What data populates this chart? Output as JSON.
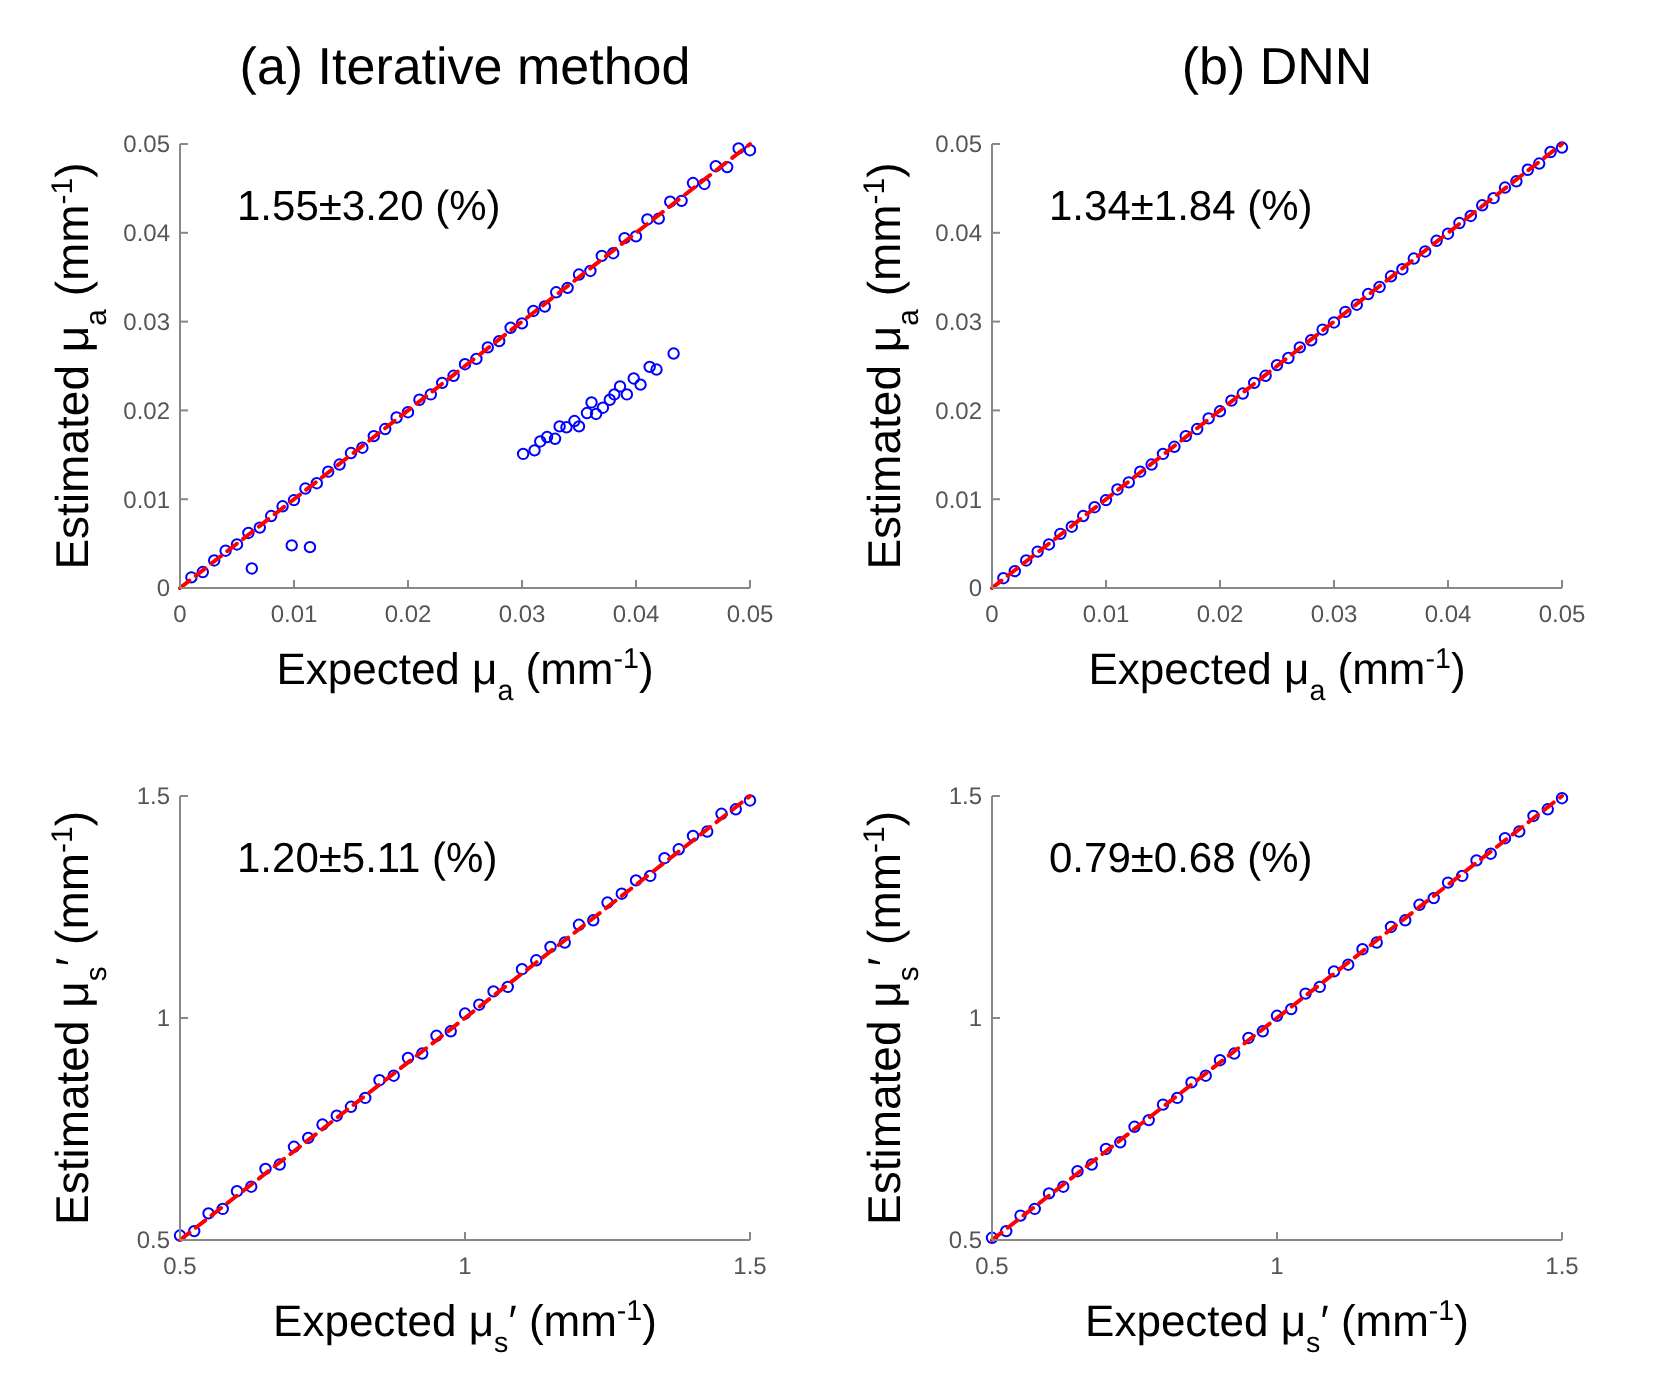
{
  "chart_data": [
    {
      "type": "scatter",
      "title": "(a) Iterative method",
      "xlabel": "Expected μ$_{a}$ (mm$^{-1}$)",
      "ylabel": "Estimated μ$_{a}$ (mm$^{-1}$)",
      "annotations": [
        "1.55±3.20 (%)"
      ],
      "xlim": [
        0,
        0.05
      ],
      "ylim": [
        0,
        0.05
      ],
      "xticks": [
        0,
        0.01,
        0.02,
        0.03,
        0.04,
        0.05
      ],
      "yticks": [
        0,
        0.01,
        0.02,
        0.03,
        0.04,
        0.05
      ],
      "series": [
        {
          "type": "scatter",
          "color": "#0000ff",
          "marker": "circle",
          "x": [
            0.001,
            0.002,
            0.003,
            0.004,
            0.005,
            0.006,
            0.007,
            0.008,
            0.009,
            0.01,
            0.011,
            0.012,
            0.013,
            0.014,
            0.015,
            0.016,
            0.017,
            0.018,
            0.019,
            0.02,
            0.021,
            0.022,
            0.023,
            0.024,
            0.025,
            0.026,
            0.027,
            0.028,
            0.029,
            0.03,
            0.031,
            0.032,
            0.033,
            0.034,
            0.035,
            0.036,
            0.037,
            0.038,
            0.039,
            0.04,
            0.041,
            0.042,
            0.043,
            0.044,
            0.045,
            0.046,
            0.047,
            0.048,
            0.049,
            0.05,
            0.0063,
            0.0098,
            0.0114,
            0.0301,
            0.0311,
            0.0316,
            0.0322,
            0.0329,
            0.0333,
            0.0339,
            0.0346,
            0.035,
            0.0357,
            0.0361,
            0.0365,
            0.0371,
            0.0377,
            0.0381,
            0.0386,
            0.0392,
            0.0398,
            0.0404,
            0.0412,
            0.0418,
            0.0433
          ],
          "values": [
            0.0012,
            0.0018,
            0.0031,
            0.0042,
            0.0049,
            0.0062,
            0.0068,
            0.0081,
            0.0092,
            0.0099,
            0.0112,
            0.0118,
            0.0131,
            0.0139,
            0.0152,
            0.0158,
            0.0171,
            0.0179,
            0.0192,
            0.0198,
            0.0212,
            0.0218,
            0.0231,
            0.0239,
            0.0252,
            0.0258,
            0.0271,
            0.0278,
            0.0293,
            0.0298,
            0.0312,
            0.0317,
            0.0333,
            0.0338,
            0.0353,
            0.0357,
            0.0374,
            0.0377,
            0.0394,
            0.0396,
            0.0415,
            0.0416,
            0.0435,
            0.0436,
            0.0456,
            0.0455,
            0.0475,
            0.0474,
            0.0495,
            0.0493,
            0.0022,
            0.0048,
            0.0046,
            0.0151,
            0.0155,
            0.0165,
            0.017,
            0.0168,
            0.0182,
            0.0181,
            0.0188,
            0.0182,
            0.0197,
            0.0209,
            0.0196,
            0.0203,
            0.0212,
            0.0218,
            0.0227,
            0.0218,
            0.0236,
            0.0229,
            0.0249,
            0.0246,
            0.0264
          ]
        },
        {
          "type": "line",
          "color": "#ff0000",
          "marker": "none",
          "line_style": "dashed",
          "x": [
            0,
            0.05
          ],
          "values": [
            0,
            0.05
          ]
        }
      ]
    },
    {
      "type": "scatter",
      "title": "(b) DNN",
      "xlabel": "Expected μ$_{a}$ (mm$^{-1}$)",
      "ylabel": "Estimated μ$_{a}$ (mm$^{-1}$)",
      "annotations": [
        "1.34±1.84 (%)"
      ],
      "xlim": [
        0,
        0.05
      ],
      "ylim": [
        0,
        0.05
      ],
      "xticks": [
        0,
        0.01,
        0.02,
        0.03,
        0.04,
        0.05
      ],
      "yticks": [
        0,
        0.01,
        0.02,
        0.03,
        0.04,
        0.05
      ],
      "series": [
        {
          "type": "scatter",
          "color": "#0000ff",
          "marker": "circle",
          "x": [
            0.001,
            0.002,
            0.003,
            0.004,
            0.005,
            0.006,
            0.007,
            0.008,
            0.009,
            0.01,
            0.011,
            0.012,
            0.013,
            0.014,
            0.015,
            0.016,
            0.017,
            0.018,
            0.019,
            0.02,
            0.021,
            0.022,
            0.023,
            0.024,
            0.025,
            0.026,
            0.027,
            0.028,
            0.029,
            0.03,
            0.031,
            0.032,
            0.033,
            0.034,
            0.035,
            0.036,
            0.037,
            0.038,
            0.039,
            0.04,
            0.041,
            0.042,
            0.043,
            0.044,
            0.045,
            0.046,
            0.047,
            0.048,
            0.049,
            0.05
          ],
          "values": [
            0.0011,
            0.0019,
            0.0031,
            0.0041,
            0.0049,
            0.0061,
            0.0069,
            0.0081,
            0.0091,
            0.0099,
            0.0111,
            0.0119,
            0.0131,
            0.0139,
            0.0151,
            0.0159,
            0.0171,
            0.0179,
            0.0191,
            0.0199,
            0.0211,
            0.0219,
            0.0231,
            0.0239,
            0.0251,
            0.0259,
            0.0271,
            0.0279,
            0.0291,
            0.0299,
            0.0311,
            0.0319,
            0.0331,
            0.0339,
            0.0351,
            0.0359,
            0.0371,
            0.0379,
            0.0391,
            0.0399,
            0.0411,
            0.0419,
            0.0431,
            0.0439,
            0.0451,
            0.0458,
            0.0471,
            0.0478,
            0.0491,
            0.0496
          ]
        },
        {
          "type": "line",
          "color": "#ff0000",
          "marker": "none",
          "line_style": "dashed",
          "x": [
            0,
            0.05
          ],
          "values": [
            0,
            0.05
          ]
        }
      ]
    },
    {
      "type": "scatter",
      "xlabel": "Expected μ$_{s}$′ (mm$^{-1}$)",
      "ylabel": "Estimated μ$_{s}$′ (mm$^{-1}$)",
      "annotations": [
        "1.20±5.11 (%)"
      ],
      "xlim": [
        0.5,
        1.5
      ],
      "ylim": [
        0.5,
        1.5
      ],
      "xticks": [
        0.5,
        1,
        1.5
      ],
      "yticks": [
        0.5,
        1,
        1.5
      ],
      "series": [
        {
          "type": "scatter",
          "color": "#0000ff",
          "marker": "circle",
          "x": [
            0.5,
            0.525,
            0.55,
            0.575,
            0.6,
            0.625,
            0.65,
            0.675,
            0.7,
            0.725,
            0.75,
            0.775,
            0.8,
            0.825,
            0.85,
            0.875,
            0.9,
            0.925,
            0.95,
            0.975,
            1.0,
            1.025,
            1.05,
            1.075,
            1.1,
            1.125,
            1.15,
            1.175,
            1.2,
            1.225,
            1.25,
            1.275,
            1.3,
            1.325,
            1.35,
            1.375,
            1.4,
            1.425,
            1.45,
            1.475,
            1.5
          ],
          "values": [
            0.51,
            0.52,
            0.56,
            0.57,
            0.61,
            0.62,
            0.66,
            0.67,
            0.71,
            0.73,
            0.76,
            0.78,
            0.8,
            0.82,
            0.86,
            0.87,
            0.91,
            0.92,
            0.96,
            0.97,
            1.01,
            1.03,
            1.06,
            1.07,
            1.11,
            1.13,
            1.16,
            1.17,
            1.21,
            1.22,
            1.26,
            1.28,
            1.31,
            1.32,
            1.36,
            1.38,
            1.41,
            1.42,
            1.46,
            1.47,
            1.49
          ]
        },
        {
          "type": "line",
          "color": "#ff0000",
          "marker": "none",
          "line_style": "dashed",
          "x": [
            0.5,
            1.5
          ],
          "values": [
            0.5,
            1.5
          ]
        }
      ]
    },
    {
      "type": "scatter",
      "xlabel": "Expected μ$_{s}$′ (mm$^{-1}$)",
      "ylabel": "Estimated μ$_{s}$′ (mm$^{-1}$)",
      "annotations": [
        "0.79±0.68 (%)"
      ],
      "xlim": [
        0.5,
        1.5
      ],
      "ylim": [
        0.5,
        1.5
      ],
      "xticks": [
        0.5,
        1,
        1.5
      ],
      "yticks": [
        0.5,
        1,
        1.5
      ],
      "series": [
        {
          "type": "scatter",
          "color": "#0000ff",
          "marker": "circle",
          "x": [
            0.5,
            0.525,
            0.55,
            0.575,
            0.6,
            0.625,
            0.65,
            0.675,
            0.7,
            0.725,
            0.75,
            0.775,
            0.8,
            0.825,
            0.85,
            0.875,
            0.9,
            0.925,
            0.95,
            0.975,
            1.0,
            1.025,
            1.05,
            1.075,
            1.1,
            1.125,
            1.15,
            1.175,
            1.2,
            1.225,
            1.25,
            1.275,
            1.3,
            1.325,
            1.35,
            1.375,
            1.4,
            1.425,
            1.45,
            1.475,
            1.5
          ],
          "values": [
            0.505,
            0.52,
            0.555,
            0.57,
            0.605,
            0.62,
            0.655,
            0.67,
            0.705,
            0.72,
            0.755,
            0.77,
            0.805,
            0.82,
            0.855,
            0.87,
            0.905,
            0.92,
            0.955,
            0.97,
            1.005,
            1.02,
            1.055,
            1.07,
            1.105,
            1.12,
            1.155,
            1.17,
            1.205,
            1.22,
            1.255,
            1.27,
            1.305,
            1.32,
            1.355,
            1.37,
            1.405,
            1.42,
            1.455,
            1.47,
            1.495
          ]
        },
        {
          "type": "line",
          "color": "#ff0000",
          "marker": "none",
          "line_style": "dashed",
          "x": [
            0.5,
            1.5
          ],
          "values": [
            0.5,
            1.5
          ]
        }
      ]
    }
  ]
}
